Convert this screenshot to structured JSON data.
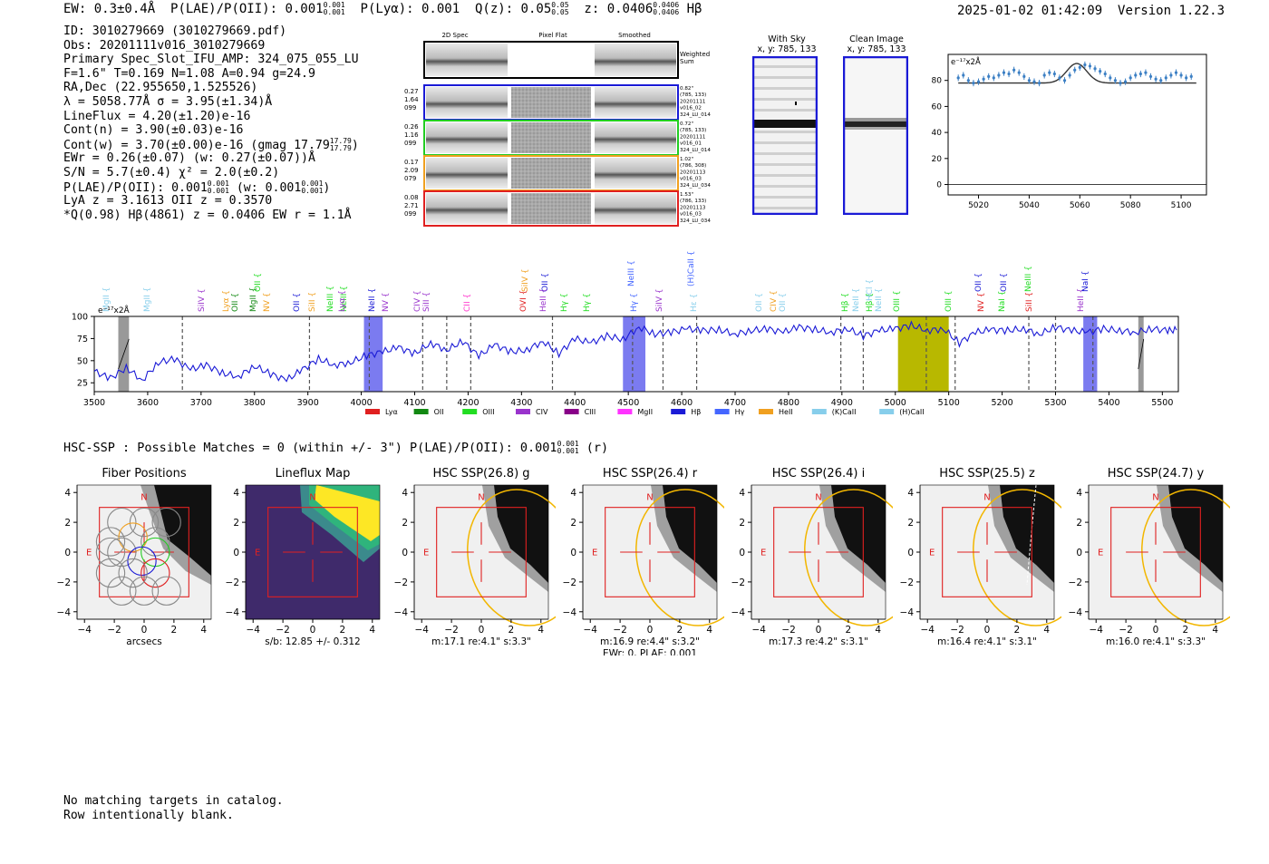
{
  "header": {
    "ew": "EW: 0.3±0.4Å",
    "plae_prefix": "P(LAE)/P(OII): 0.001",
    "plae_hi": "0.001",
    "plae_lo": "0.001",
    "plya": "P(Lyα): 0.001",
    "qz_prefix": "Q(z): 0.05",
    "qz_hi": "0.05",
    "qz_lo": "0.05",
    "z_prefix": "z: 0.0406",
    "z_hi": "0.0406",
    "z_lo": "0.0406",
    "z_line": "Hβ",
    "timestamp": "2025-01-02 01:42:09",
    "version": "Version 1.22.3"
  },
  "info": {
    "lines": [
      "ID: 3010279669 (3010279669.pdf)",
      "Obs: 20201111v016_3010279669",
      "Primary Spec_Slot_IFU_AMP: 324_075_055_LU",
      "F=1.6\"  T=0.169  N=1.08  A=0.94  g=24.9",
      "RA,Dec (22.955650,1.525526)",
      "λ = 5058.77Å  σ = 3.95(±1.34)Å",
      "LineFlux = 4.20(±1.20)e-16",
      "Cont(n) = 3.90(±0.03)e-16"
    ],
    "cont_w_prefix": "Cont(w) = 3.70(±0.00)e-16 (gmag 17.79",
    "cont_w_hi": "17.79",
    "cont_w_lo": "17.79",
    "cont_w_suffix": ")",
    "ewr": "EWr = 0.26(±0.07) (w: 0.27(±0.07))Å",
    "sn": "S/N = 5.7(±0.4)  χ² = 2.0(±0.2)",
    "plae_prefix": "P(LAE)/P(OII): 0.001",
    "plae_hi": "0.001",
    "plae_lo": "0.001",
    "plae_w_prefix": "(w: 0.001",
    "plae_w_hi": "0.001",
    "plae_w_lo": "0.001",
    "plae_w_suffix": ")",
    "lya": "LyA z = 3.1613  OII z = 0.3570",
    "q_line": "*Q(0.98) Hβ(4861) z = 0.0406  EW r = 1.1Å"
  },
  "cutouts": {
    "columns": [
      "2D Spec",
      "Pixel Flat",
      "Smoothed"
    ],
    "weighted_label_1": "Weighted",
    "weighted_label_2": "Sum",
    "rows": [
      {
        "left": [
          "0.27",
          "1.64",
          "099"
        ],
        "right": [
          "0.82\"",
          "(785, 133)",
          "20201111",
          "v016_02",
          "324_LU_014"
        ],
        "color": "#1a1ad6"
      },
      {
        "left": [
          "0.26",
          "1.16",
          "099"
        ],
        "right": [
          "0.72\"",
          "(785, 133)",
          "20201111",
          "v016_01",
          "324_LU_014"
        ],
        "color": "#22cc22"
      },
      {
        "left": [
          "0.17",
          "2.09",
          "079"
        ],
        "right": [
          "1.02\"",
          "(786, 308)",
          "20201113",
          "v016_03",
          "324_LU_034"
        ],
        "color": "#f0a020"
      },
      {
        "left": [
          "0.08",
          "2.71",
          "099"
        ],
        "right": [
          "1.53\"",
          "(786, 133)",
          "20201113",
          "v016_03",
          "324_LU_034"
        ],
        "color": "#e02020"
      }
    ]
  },
  "sky": {
    "with_sky_1": "With Sky",
    "with_sky_2": "x, y: 785, 133",
    "clean_1": "Clean Image",
    "clean_2": "x, y: 785, 133"
  },
  "zoom_chart": {
    "scale_label": "e⁻¹⁷x2Å",
    "x_ticks": [
      "5020",
      "5040",
      "5060",
      "5080",
      "5100"
    ],
    "y_ticks": [
      "0",
      "20",
      "40",
      "60",
      "80"
    ]
  },
  "line_labels": [
    {
      "t": "MgII",
      "c": "#87ceeb"
    },
    {
      "t": "MgII",
      "c": "#87ceeb"
    },
    {
      "t": "SiIV",
      "c": "#9933cc"
    },
    {
      "t": "Lyα",
      "c": "#f0a020"
    },
    {
      "t": "OII",
      "c": "#118811"
    },
    {
      "t": "MgII",
      "c": "#118811"
    },
    {
      "t": "OII",
      "c": "#22dd22"
    },
    {
      "t": "NV",
      "c": "#f0a020"
    },
    {
      "t": "OII",
      "c": "#1a1ad6"
    },
    {
      "t": "SiII",
      "c": "#f0a020"
    },
    {
      "t": "NeIII",
      "c": "#22dd22"
    },
    {
      "t": "NeIII",
      "c": "#22dd22"
    },
    {
      "t": "Lyα",
      "c": "#9933cc"
    },
    {
      "t": "NeII",
      "c": "#1a1ad6"
    },
    {
      "t": "NV",
      "c": "#9933cc"
    },
    {
      "t": "CIV",
      "c": "#9933cc"
    },
    {
      "t": "SiII",
      "c": "#9933cc"
    },
    {
      "t": "CII",
      "c": "#ff33cc"
    },
    {
      "t": "SiIV",
      "c": "#f0a020"
    },
    {
      "t": "OVI",
      "c": "#e02020"
    },
    {
      "t": "OII",
      "c": "#1a1ad6"
    },
    {
      "t": "HeII",
      "c": "#9933cc"
    },
    {
      "t": "Hγ",
      "c": "#22dd22"
    },
    {
      "t": "Hγ",
      "c": "#22dd22"
    },
    {
      "t": "NeIII",
      "c": "#4466ff"
    },
    {
      "t": "Hγ",
      "c": "#4466ff"
    },
    {
      "t": "SiIV",
      "c": "#9933cc"
    },
    {
      "t": "(H)CaII",
      "c": "#4466ff"
    },
    {
      "t": "Hε",
      "c": "#87ceeb"
    },
    {
      "t": "OII",
      "c": "#87ceeb"
    },
    {
      "t": "CIV",
      "c": "#f0a020"
    },
    {
      "t": "OII",
      "c": "#87ceeb"
    },
    {
      "t": "Hβ",
      "c": "#22dd22"
    },
    {
      "t": "NeII",
      "c": "#87ceeb"
    },
    {
      "t": "Hβ",
      "c": "#22dd22"
    },
    {
      "t": "HCl",
      "c": "#87ceeb"
    },
    {
      "t": "NeII",
      "c": "#87ceeb"
    },
    {
      "t": "OIII",
      "c": "#22dd22"
    },
    {
      "t": "OIII",
      "c": "#22dd22"
    },
    {
      "t": "OII",
      "c": "#1a1ad6"
    },
    {
      "t": "NV",
      "c": "#e02020"
    },
    {
      "t": "OII",
      "c": "#1a1ad6"
    },
    {
      "t": "NaI",
      "c": "#22dd22"
    },
    {
      "t": "NeIII",
      "c": "#22dd22"
    },
    {
      "t": "SiII",
      "c": "#e02020"
    },
    {
      "t": "HeII",
      "c": "#9933cc"
    },
    {
      "t": "NaI",
      "c": "#1a1ad6"
    }
  ],
  "chart_data": {
    "type": "line",
    "title": "",
    "scale_label": "e⁻¹⁷x2Å",
    "xlim": [
      3500,
      5530
    ],
    "ylim": [
      15,
      100
    ],
    "x_ticks": [
      3500,
      3600,
      3700,
      3800,
      3900,
      4000,
      4100,
      4200,
      4300,
      4400,
      4500,
      4600,
      4700,
      4800,
      4900,
      5000,
      5100,
      5200,
      5300,
      5400,
      5500
    ],
    "y_ticks": [
      25,
      50,
      75,
      100
    ],
    "series": [
      {
        "color": "#1a1ad6",
        "x": [
          3500,
          3530,
          3560,
          3590,
          3620,
          3650,
          3680,
          3710,
          3740,
          3770,
          3800,
          3830,
          3860,
          3890,
          3920,
          3950,
          3980,
          4010,
          4040,
          4070,
          4100,
          4130,
          4160,
          4190,
          4220,
          4250,
          4280,
          4310,
          4340,
          4370,
          4400,
          4430,
          4460,
          4490,
          4520,
          4550,
          4580,
          4610,
          4640,
          4670,
          4700,
          4730,
          4760,
          4790,
          4820,
          4850,
          4880,
          4910,
          4940,
          4970,
          5000,
          5030,
          5060,
          5090,
          5120,
          5150,
          5180,
          5210,
          5240,
          5270,
          5300,
          5330,
          5360,
          5390,
          5420,
          5450,
          5480,
          5510,
          5530
        ],
        "y": [
          38,
          30,
          42,
          28,
          48,
          52,
          40,
          45,
          36,
          32,
          44,
          35,
          28,
          40,
          52,
          45,
          48,
          56,
          60,
          65,
          58,
          70,
          62,
          72,
          55,
          68,
          60,
          62,
          72,
          58,
          75,
          70,
          78,
          74,
          88,
          80,
          82,
          86,
          84,
          85,
          80,
          84,
          86,
          82,
          88,
          85,
          82,
          86,
          78,
          84,
          86,
          90,
          84,
          86,
          70,
          82,
          85,
          84,
          86,
          80,
          88,
          84,
          82,
          86,
          84,
          82,
          86,
          84,
          85
        ]
      }
    ],
    "regions": [
      {
        "x0": 3545,
        "x1": 3565,
        "kind": "gray"
      },
      {
        "x0": 4005,
        "x1": 4040,
        "kind": "blue"
      },
      {
        "x0": 4490,
        "x1": 4532,
        "kind": "blue"
      },
      {
        "x0": 5005,
        "x1": 5100,
        "kind": "olive"
      },
      {
        "x0": 5352,
        "x1": 5378,
        "kind": "blue"
      },
      {
        "x0": 5455,
        "x1": 5465,
        "kind": "gray"
      }
    ],
    "dashed_lines": [
      3665,
      3903,
      4015,
      4115,
      4160,
      4205,
      4358,
      4508,
      4565,
      4628,
      4898,
      4940,
      5058,
      5112,
      5250,
      5300,
      5370
    ],
    "legend": [
      "Lyα",
      "OII",
      "OIII",
      "CIV",
      "CIII",
      "MgII",
      "Hβ",
      "Hγ",
      "HeII",
      "(K)CaII",
      "(H)CaII"
    ],
    "legend_colors": [
      "#e02020",
      "#118811",
      "#22dd22",
      "#9933cc",
      "#880088",
      "#ff33ff",
      "#1a1ad6",
      "#4466ff",
      "#f0a020",
      "#87ceeb",
      "#87ceeb"
    ]
  },
  "hsc": {
    "title_prefix": "HSC-SSP : Possible Matches = 0 (within +/- 3\")  P(LAE)/P(OII): 0.001",
    "title_hi": "0.001",
    "title_lo": "0.001",
    "title_suffix": "(r)",
    "panels": [
      {
        "title": "Fiber Positions",
        "caption": "arcsecs",
        "caption2": ""
      },
      {
        "title": "Lineflux Map",
        "caption": "s/b: 12.85 +/- 0.312",
        "caption2": ""
      },
      {
        "title": "HSC SSP(26.8) g",
        "caption": "m:17.1  re:4.1\"  s:3.3\"",
        "caption2": ""
      },
      {
        "title": "HSC SSP(26.4) r",
        "caption": "m:16.9  re:4.4\"  s:3.2\"",
        "caption2": "EWr: 0, PLAE: 0.001"
      },
      {
        "title": "HSC SSP(26.4) i",
        "caption": "m:17.3  re:4.2\"  s:3.1\"",
        "caption2": ""
      },
      {
        "title": "HSC SSP(25.5) z",
        "caption": "m:16.4  re:4.1\"  s:3.1\"",
        "caption2": ""
      },
      {
        "title": "HSC SSP(24.7) y",
        "caption": "m:16.0  re:4.1\"  s:3.3\"",
        "caption2": ""
      }
    ],
    "axis_ticks": [
      "−4",
      "−2",
      "0",
      "2",
      "4"
    ],
    "n_label": "N",
    "e_label": "E"
  },
  "footer": {
    "line1": "No matching targets in catalog.",
    "line2": "Row intentionally blank."
  }
}
